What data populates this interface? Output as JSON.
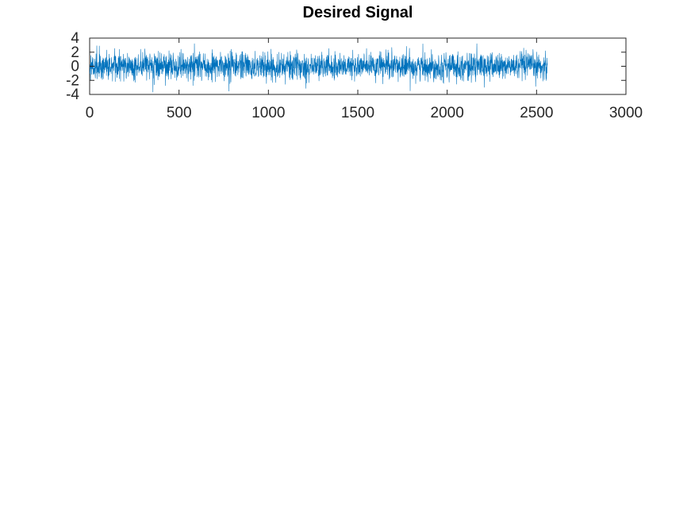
{
  "chart_data": {
    "type": "line",
    "title": "Desired Signal",
    "xlabel": "",
    "ylabel": "",
    "xlim": [
      0,
      3000
    ],
    "ylim": [
      -4,
      4
    ],
    "xticks": [
      0,
      500,
      1000,
      1500,
      2000,
      2500,
      3000
    ],
    "yticks": [
      4,
      2,
      0,
      -2,
      -4
    ],
    "xtick_labels": [
      "0",
      "500",
      "1000",
      "1500",
      "2000",
      "2500",
      "3000"
    ],
    "ytick_labels": [
      "4",
      "2",
      "0",
      "-2",
      "-4"
    ],
    "grid": false,
    "legend": "none",
    "series": [
      {
        "n_samples": 2560,
        "x_start": 1,
        "x_end": 2560,
        "distribution": "zero-mean noise, std ≈ 1",
        "peak_range": [
          -3.8,
          3.2
        ],
        "color": "#0072BD"
      }
    ]
  }
}
